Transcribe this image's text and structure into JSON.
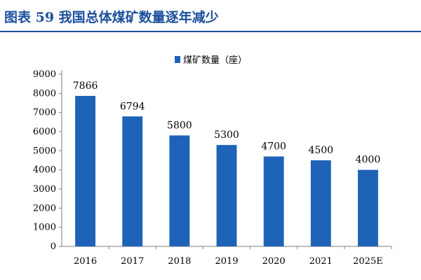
{
  "figure": {
    "title": "图表 59  我国总体煤矿数量逐年减少"
  },
  "chart_data": {
    "type": "bar",
    "categories": [
      "2016",
      "2017",
      "2018",
      "2019",
      "2020",
      "2021",
      "2025E"
    ],
    "series": [
      {
        "name": "煤矿数量（座）",
        "values": [
          7866,
          6794,
          5800,
          5300,
          4700,
          4500,
          4000
        ],
        "color": "#1f63b8"
      }
    ],
    "ylim": [
      0,
      9000
    ],
    "yticks": [
      0,
      1000,
      2000,
      3000,
      4000,
      5000,
      6000,
      7000,
      8000,
      9000
    ],
    "grid": false,
    "legend_position": "top-center"
  }
}
